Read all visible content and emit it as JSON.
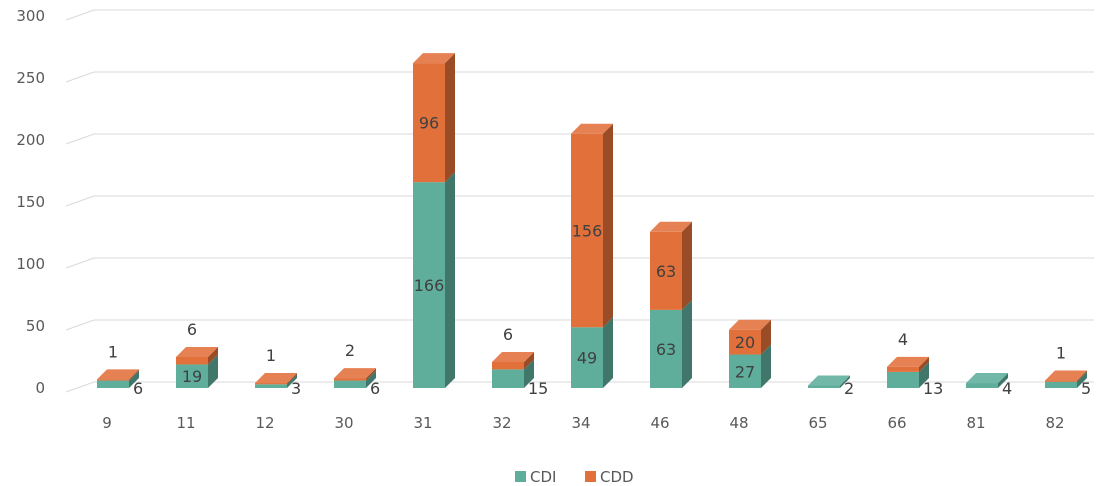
{
  "chart_data": {
    "type": "bar",
    "stacked": true,
    "style": "3d-column",
    "categories": [
      "9",
      "11",
      "12",
      "30",
      "31",
      "32",
      "34",
      "46",
      "48",
      "65",
      "66",
      "81",
      "82"
    ],
    "series": [
      {
        "name": "CDI",
        "color": "#5fae9c",
        "values": [
          6,
          19,
          3,
          6,
          166,
          15,
          49,
          63,
          27,
          2,
          13,
          4,
          5
        ]
      },
      {
        "name": "CDD",
        "color": "#e2703a",
        "values": [
          1,
          6,
          1,
          2,
          96,
          6,
          156,
          63,
          20,
          0,
          4,
          0,
          1
        ]
      }
    ],
    "ylim": [
      0,
      300
    ],
    "yticks": [
      0,
      50,
      100,
      150,
      200,
      250,
      300
    ],
    "grid": true,
    "legend": "bottom"
  }
}
